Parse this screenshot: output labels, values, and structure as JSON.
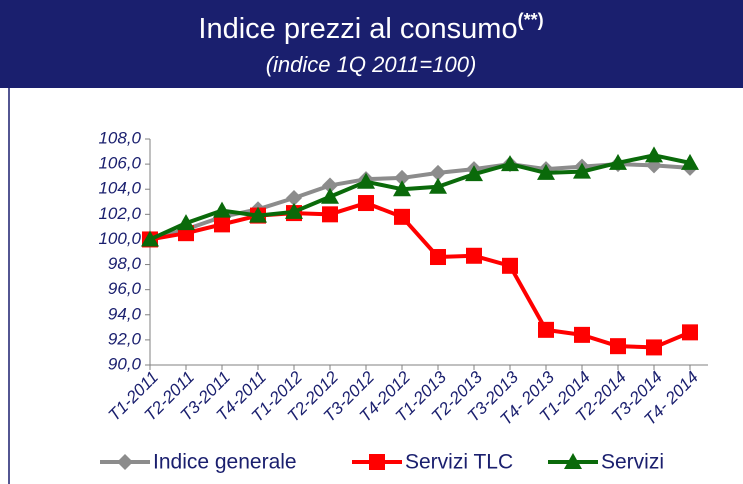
{
  "chart_data": {
    "type": "line",
    "title": "Indice prezzi al consumo",
    "title_note": "(**)",
    "subtitle": "(indice 1Q 2011=100)",
    "categories": [
      "T1-2011",
      "T2-2011",
      "T3-2011",
      "T4-2011",
      "T1-2012",
      "T2-2012",
      "T3-2012",
      "T4-2012",
      "T1-2013",
      "T2-2013",
      "T3-2013",
      "T4- 2013",
      "T1-2014",
      "T2-2014",
      "T3-2014",
      "T4- 2014"
    ],
    "series": [
      {
        "name": "Indice generale",
        "color": "#8c8c8c",
        "marker": "diamond",
        "values": [
          100,
          100.8,
          101.8,
          102.4,
          103.3,
          104.3,
          104.8,
          104.9,
          105.3,
          105.6,
          106.0,
          105.6,
          105.8,
          106.0,
          105.9,
          105.7
        ]
      },
      {
        "name": "Servizi TLC",
        "color": "#ff0000",
        "marker": "square",
        "values": [
          100,
          100.5,
          101.2,
          101.9,
          102.1,
          102.0,
          102.9,
          101.8,
          98.6,
          98.7,
          97.9,
          92.8,
          92.4,
          91.5,
          91.4,
          92.6
        ]
      },
      {
        "name": "Servizi",
        "color": "#0a6a0a",
        "marker": "triangle",
        "values": [
          100,
          101.3,
          102.3,
          101.9,
          102.2,
          103.4,
          104.6,
          104.0,
          104.2,
          105.2,
          106.0,
          105.3,
          105.4,
          106.1,
          106.7,
          106.1
        ]
      }
    ],
    "ylim": [
      90,
      108
    ],
    "yticks": [
      {
        "value": 90,
        "label": "90,0"
      },
      {
        "value": 92,
        "label": "92,0"
      },
      {
        "value": 94,
        "label": "94,0"
      },
      {
        "value": 96,
        "label": "96,0"
      },
      {
        "value": 98,
        "label": "98,0"
      },
      {
        "value": 100,
        "label": "100,0"
      },
      {
        "value": 102,
        "label": "102,0"
      },
      {
        "value": 104,
        "label": "104,0"
      },
      {
        "value": 106,
        "label": "106,0"
      },
      {
        "value": 108,
        "label": "108,0"
      }
    ],
    "grid": false
  }
}
